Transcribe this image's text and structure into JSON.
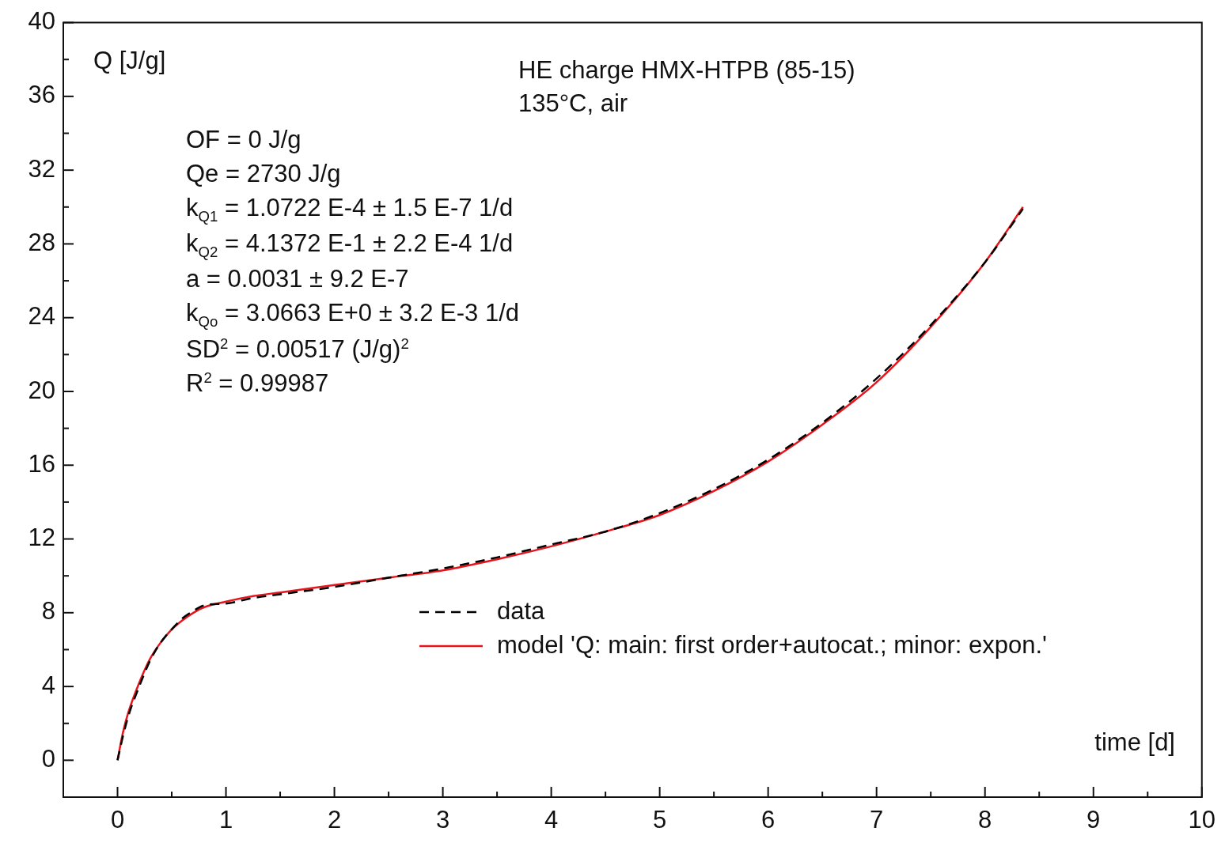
{
  "chart_data": {
    "type": "line",
    "title": "HE charge HMX-HTPB (85-15)",
    "subtitle": "135°C, air",
    "xlabel": "time [d]",
    "ylabel": "Q [J/g]",
    "annotations": [
      "OF = 0 J/g",
      "Qe = 2730 J/g",
      "k$_{Q1}$ = 1.0722 E-4 ± 1.5 E-7 1/d",
      "k$_{Q2}$ = 4.1372 E-1 ± 2.2 E-4 1/d",
      "a = 0.0031 ± 9.2 E-7",
      "k$_{Qo}$ = 3.0663 E+0 ± 3.2 E-3 1/d",
      "SD$^{2}$ = 0.00517 (J/g)$^{2}$",
      "R$^{2}$ = 0.99987"
    ],
    "x": [
      0,
      0.05,
      0.1,
      0.2,
      0.3,
      0.4,
      0.5,
      0.6,
      0.7,
      0.8,
      1,
      1.25,
      1.5,
      2,
      2.5,
      3,
      3.5,
      4,
      4.5,
      5,
      5.5,
      6,
      6.5,
      7,
      7.5,
      8,
      8.35
    ],
    "series": [
      {
        "name": "data",
        "color": "#000000",
        "line_style": "dashed",
        "values": [
          0,
          1.3,
          2.4,
          4.0,
          5.4,
          6.4,
          7.1,
          7.7,
          8.1,
          8.4,
          8.5,
          8.8,
          9.0,
          9.4,
          9.9,
          10.4,
          11.0,
          11.7,
          12.4,
          13.4,
          14.7,
          16.3,
          18.3,
          20.7,
          23.6,
          27.0,
          29.9
        ]
      },
      {
        "name": "model 'Q: main: first order+autocat.; minor: expon.'",
        "color": "#e8141c",
        "line_style": "solid",
        "values": [
          0,
          1.5,
          2.6,
          4.2,
          5.5,
          6.4,
          7.1,
          7.6,
          8.0,
          8.3,
          8.6,
          8.9,
          9.1,
          9.5,
          9.9,
          10.3,
          10.9,
          11.6,
          12.4,
          13.3,
          14.6,
          16.2,
          18.2,
          20.5,
          23.5,
          27.0,
          30.0
        ]
      }
    ],
    "xlim": [
      -0.5,
      10
    ],
    "ylim": [
      -2,
      40
    ],
    "xticks": [
      0,
      {
        "value": 0.5,
        "label": null
      },
      1,
      {
        "value": 1.5,
        "label": null
      },
      2,
      {
        "value": 2.5,
        "label": null
      },
      3,
      {
        "value": 3.5,
        "label": null
      },
      4,
      {
        "value": 4.5,
        "label": null
      },
      5,
      {
        "value": 5.5,
        "label": null
      },
      6,
      {
        "value": 6.5,
        "label": null
      },
      7,
      {
        "value": 7.5,
        "label": null
      },
      8,
      {
        "value": 8.5,
        "label": null
      },
      9,
      {
        "value": 9.5,
        "label": null
      },
      10
    ],
    "yticks": [
      0,
      {
        "value": 2,
        "label": null
      },
      4,
      {
        "value": 6,
        "label": null
      },
      8,
      {
        "value": 10,
        "label": null
      },
      12,
      {
        "value": 14,
        "label": null
      },
      16,
      {
        "value": 18,
        "label": null
      },
      20,
      {
        "value": 22,
        "label": null
      },
      24,
      {
        "value": 26,
        "label": null
      },
      28,
      {
        "value": 30,
        "label": null
      },
      32,
      {
        "value": 34,
        "label": null
      },
      36,
      {
        "value": 38,
        "label": null
      },
      40
    ],
    "grid": false,
    "legend": "bottom right",
    "marker": "none"
  }
}
